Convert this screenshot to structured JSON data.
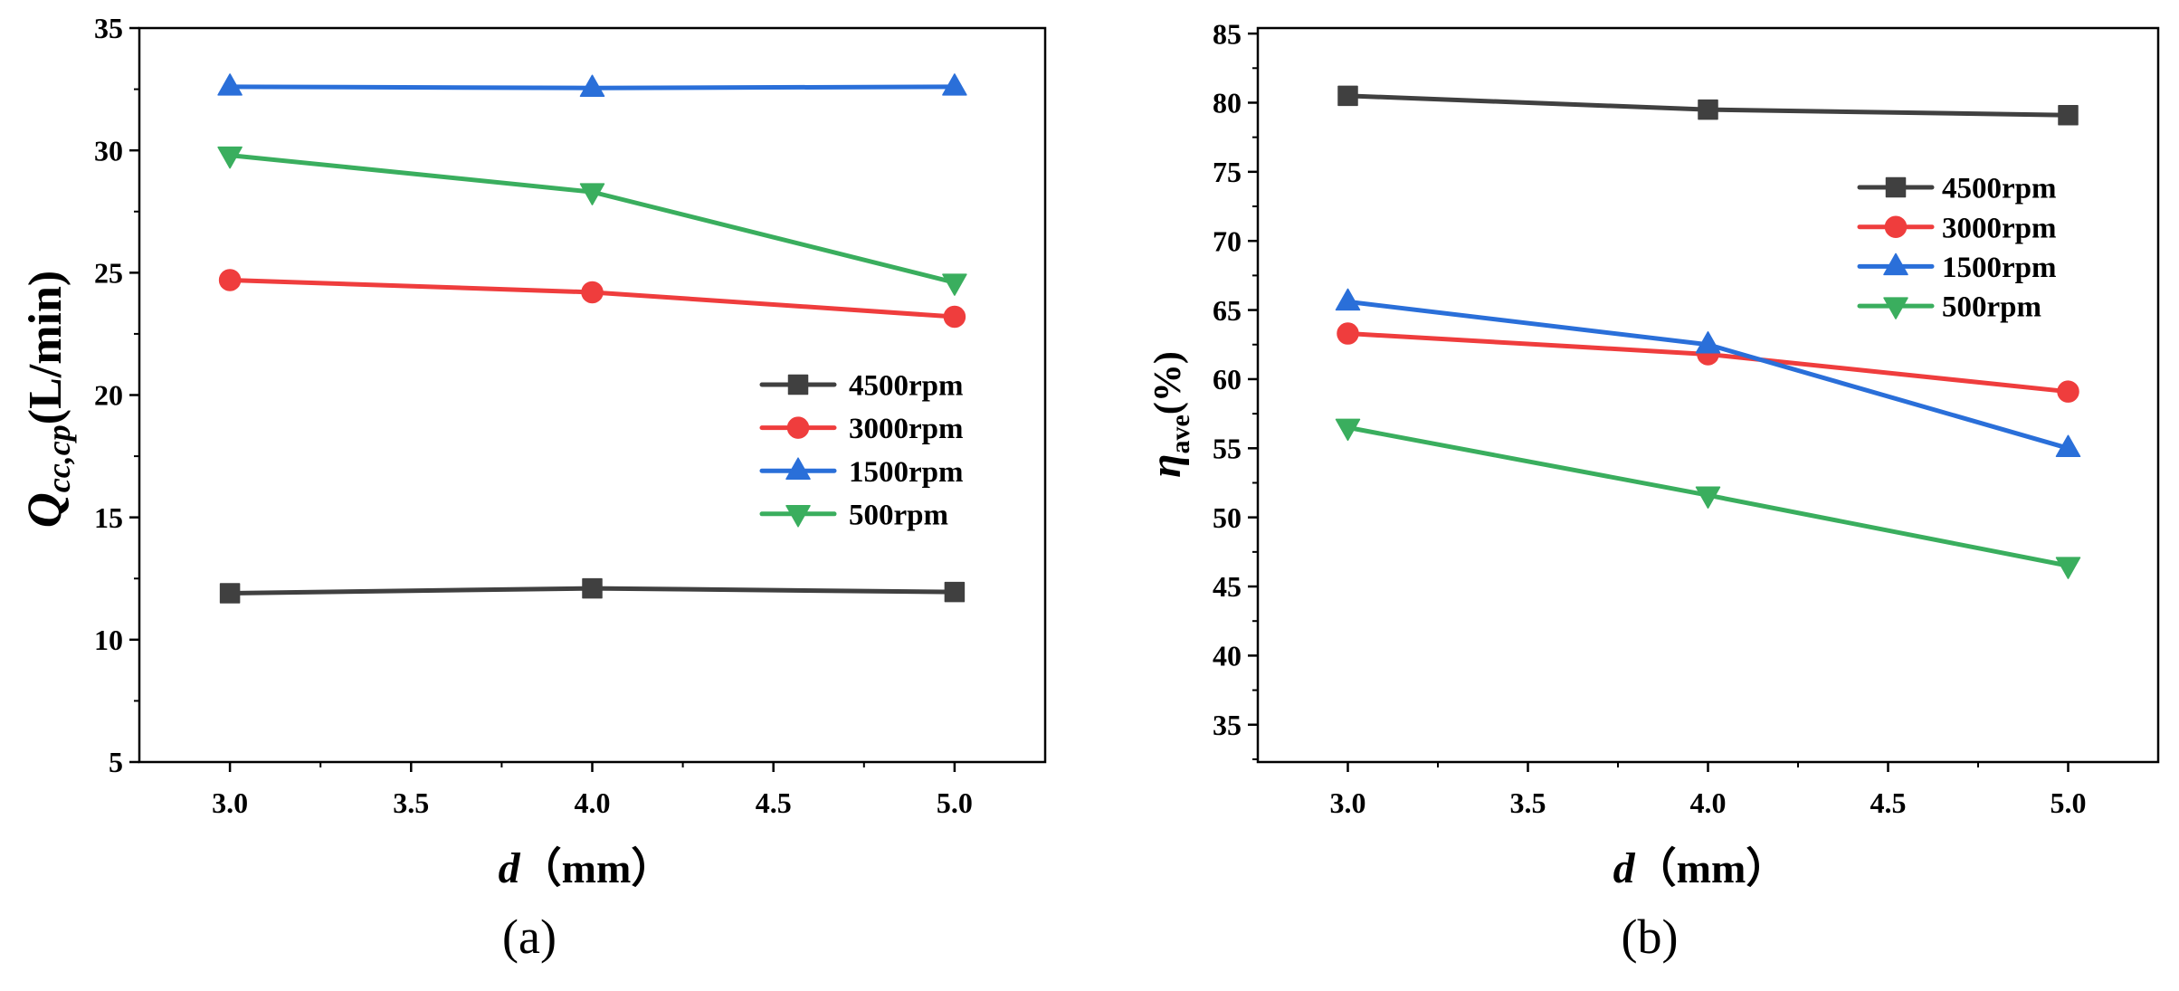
{
  "chart_data": [
    {
      "type": "line",
      "caption": "(a)",
      "xlabel": {
        "var": "d",
        "unit": "（mm）"
      },
      "ylabel": {
        "main": "Q",
        "sub": "cc,cp",
        "suffix": "(L/min)"
      },
      "x": [
        3.0,
        4.0,
        5.0
      ],
      "xlim": [
        2.75,
        5.25
      ],
      "ylim": [
        5,
        35
      ],
      "xticks": [
        "3.0",
        "3.5",
        "4.0",
        "4.5",
        "5.0"
      ],
      "yticks": [
        "5",
        "10",
        "15",
        "20",
        "25",
        "30",
        "35"
      ],
      "grid": false,
      "legend_position": "center-right",
      "series": [
        {
          "name": "4500rpm",
          "marker": "square",
          "color": "#404040",
          "values": [
            11.9,
            12.1,
            11.95
          ]
        },
        {
          "name": "3000rpm",
          "marker": "circle",
          "color": "#ef3d3d",
          "values": [
            24.7,
            24.2,
            23.2
          ]
        },
        {
          "name": "1500rpm",
          "marker": "triangle-up",
          "color": "#2a6fd9",
          "values": [
            32.6,
            32.55,
            32.6
          ]
        },
        {
          "name": "500rpm",
          "marker": "triangle-down",
          "color": "#3aae5e",
          "values": [
            29.8,
            28.3,
            24.6
          ]
        }
      ]
    },
    {
      "type": "line",
      "caption": "(b)",
      "xlabel": {
        "var": "d",
        "unit": "（mm）"
      },
      "ylabel": {
        "main": "η",
        "sub": "ave",
        "suffix": "(%)"
      },
      "x": [
        3.0,
        4.0,
        5.0
      ],
      "xlim": [
        2.75,
        5.25
      ],
      "ylim": [
        32.3,
        85.4
      ],
      "xticks": [
        "3.0",
        "3.5",
        "4.0",
        "4.5",
        "5.0"
      ],
      "yticks": [
        "35",
        "40",
        "45",
        "50",
        "55",
        "60",
        "65",
        "70",
        "75",
        "80",
        "85"
      ],
      "grid": false,
      "legend_position": "top-right",
      "series": [
        {
          "name": "4500rpm",
          "marker": "square",
          "color": "#404040",
          "values": [
            80.5,
            79.5,
            79.1
          ]
        },
        {
          "name": "3000rpm",
          "marker": "circle",
          "color": "#ef3d3d",
          "values": [
            63.3,
            61.8,
            59.1
          ]
        },
        {
          "name": "1500rpm",
          "marker": "triangle-up",
          "color": "#2a6fd9",
          "values": [
            65.6,
            62.5,
            55.0
          ]
        },
        {
          "name": "500rpm",
          "marker": "triangle-down",
          "color": "#3aae5e",
          "values": [
            56.5,
            51.6,
            46.5
          ]
        }
      ]
    }
  ]
}
